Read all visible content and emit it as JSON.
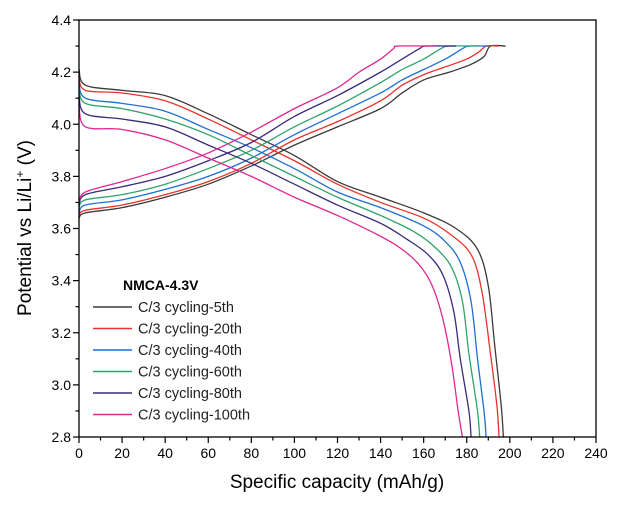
{
  "chart_data": {
    "type": "line",
    "title": "",
    "xlabel": "Specific capacity (mAh/g)",
    "ylabel": {
      "main": "Potential vs Li/Li",
      "sup": "+",
      "tail": " (V)"
    },
    "xlim": [
      0,
      240
    ],
    "ylim": [
      2.8,
      4.4
    ],
    "xticks": [
      0,
      20,
      40,
      60,
      80,
      100,
      120,
      140,
      160,
      180,
      200,
      220,
      240
    ],
    "yticks": [
      2.8,
      3.0,
      3.2,
      3.4,
      3.6,
      3.8,
      4.0,
      4.2,
      4.4
    ],
    "xtick_labels": [
      "0",
      "20",
      "40",
      "60",
      "80",
      "100",
      "120",
      "140",
      "160",
      "180",
      "200",
      "220",
      "240"
    ],
    "ytick_labels": [
      "2.8",
      "3.0",
      "3.2",
      "3.4",
      "3.6",
      "3.8",
      "4.0",
      "4.2",
      "4.4"
    ],
    "grid": false,
    "legend": {
      "title": "NMCA-4.3V",
      "placement": "bottom-left"
    },
    "series": [
      {
        "name": "C/3 cycling-5th",
        "color": "#3a3a3a",
        "discharge": [
          [
            0,
            4.21
          ],
          [
            3,
            4.15
          ],
          [
            20,
            4.13
          ],
          [
            40,
            4.11
          ],
          [
            60,
            4.04
          ],
          [
            80,
            3.96
          ],
          [
            100,
            3.88
          ],
          [
            120,
            3.78
          ],
          [
            140,
            3.72
          ],
          [
            160,
            3.66
          ],
          [
            175,
            3.6
          ],
          [
            185,
            3.52
          ],
          [
            190,
            3.38
          ],
          [
            193,
            3.15
          ],
          [
            196,
            2.92
          ],
          [
            197,
            2.8
          ]
        ],
        "charge": [
          [
            0,
            3.64
          ],
          [
            3,
            3.66
          ],
          [
            20,
            3.68
          ],
          [
            40,
            3.72
          ],
          [
            60,
            3.77
          ],
          [
            80,
            3.84
          ],
          [
            100,
            3.92
          ],
          [
            120,
            3.99
          ],
          [
            140,
            4.06
          ],
          [
            150,
            4.12
          ],
          [
            160,
            4.17
          ],
          [
            172,
            4.2
          ],
          [
            182,
            4.23
          ],
          [
            188,
            4.26
          ],
          [
            191,
            4.3
          ],
          [
            198,
            4.3
          ]
        ]
      },
      {
        "name": "C/3 cycling-20th",
        "color": "#e8332a",
        "discharge": [
          [
            0,
            4.18
          ],
          [
            3,
            4.13
          ],
          [
            20,
            4.12
          ],
          [
            40,
            4.09
          ],
          [
            60,
            4.02
          ],
          [
            80,
            3.94
          ],
          [
            100,
            3.86
          ],
          [
            120,
            3.77
          ],
          [
            140,
            3.7
          ],
          [
            160,
            3.64
          ],
          [
            172,
            3.58
          ],
          [
            182,
            3.5
          ],
          [
            187,
            3.36
          ],
          [
            191,
            3.12
          ],
          [
            194,
            2.92
          ],
          [
            195,
            2.8
          ]
        ],
        "charge": [
          [
            0,
            3.65
          ],
          [
            3,
            3.67
          ],
          [
            20,
            3.69
          ],
          [
            40,
            3.73
          ],
          [
            60,
            3.78
          ],
          [
            80,
            3.85
          ],
          [
            100,
            3.94
          ],
          [
            120,
            4.01
          ],
          [
            140,
            4.09
          ],
          [
            150,
            4.15
          ],
          [
            160,
            4.19
          ],
          [
            170,
            4.22
          ],
          [
            180,
            4.25
          ],
          [
            186,
            4.28
          ],
          [
            189,
            4.3
          ],
          [
            195,
            4.3
          ]
        ]
      },
      {
        "name": "C/3 cycling-40th",
        "color": "#1f6fd1",
        "discharge": [
          [
            0,
            4.16
          ],
          [
            3,
            4.1
          ],
          [
            20,
            4.08
          ],
          [
            40,
            4.05
          ],
          [
            60,
            3.98
          ],
          [
            80,
            3.91
          ],
          [
            100,
            3.83
          ],
          [
            120,
            3.74
          ],
          [
            140,
            3.68
          ],
          [
            160,
            3.61
          ],
          [
            170,
            3.55
          ],
          [
            177,
            3.47
          ],
          [
            182,
            3.32
          ],
          [
            185,
            3.1
          ],
          [
            188,
            2.9
          ],
          [
            189,
            2.8
          ]
        ],
        "charge": [
          [
            0,
            3.66
          ],
          [
            3,
            3.69
          ],
          [
            20,
            3.71
          ],
          [
            40,
            3.75
          ],
          [
            60,
            3.8
          ],
          [
            80,
            3.87
          ],
          [
            100,
            3.96
          ],
          [
            120,
            4.04
          ],
          [
            140,
            4.12
          ],
          [
            150,
            4.17
          ],
          [
            160,
            4.21
          ],
          [
            170,
            4.25
          ],
          [
            178,
            4.29
          ],
          [
            181,
            4.3
          ],
          [
            190,
            4.3
          ]
        ]
      },
      {
        "name": "C/3 cycling-60th",
        "color": "#2fa36b",
        "discharge": [
          [
            0,
            4.14
          ],
          [
            3,
            4.08
          ],
          [
            20,
            4.06
          ],
          [
            40,
            4.02
          ],
          [
            60,
            3.96
          ],
          [
            80,
            3.88
          ],
          [
            100,
            3.8
          ],
          [
            120,
            3.72
          ],
          [
            140,
            3.65
          ],
          [
            155,
            3.59
          ],
          [
            165,
            3.53
          ],
          [
            173,
            3.45
          ],
          [
            178,
            3.32
          ],
          [
            181,
            3.12
          ],
          [
            185,
            2.9
          ],
          [
            186,
            2.8
          ]
        ],
        "charge": [
          [
            0,
            3.68
          ],
          [
            3,
            3.71
          ],
          [
            20,
            3.73
          ],
          [
            40,
            3.77
          ],
          [
            60,
            3.83
          ],
          [
            80,
            3.9
          ],
          [
            100,
            3.99
          ],
          [
            120,
            4.07
          ],
          [
            140,
            4.16
          ],
          [
            150,
            4.21
          ],
          [
            160,
            4.25
          ],
          [
            168,
            4.29
          ],
          [
            172,
            4.3
          ],
          [
            185,
            4.3
          ]
        ]
      },
      {
        "name": "C/3 cycling-80th",
        "color": "#3a2a7a",
        "discharge": [
          [
            0,
            4.11
          ],
          [
            3,
            4.04
          ],
          [
            20,
            4.02
          ],
          [
            40,
            3.99
          ],
          [
            60,
            3.92
          ],
          [
            80,
            3.85
          ],
          [
            100,
            3.77
          ],
          [
            120,
            3.69
          ],
          [
            140,
            3.62
          ],
          [
            152,
            3.56
          ],
          [
            162,
            3.5
          ],
          [
            169,
            3.42
          ],
          [
            174,
            3.28
          ],
          [
            177,
            3.1
          ],
          [
            181,
            2.9
          ],
          [
            182,
            2.8
          ]
        ],
        "charge": [
          [
            0,
            3.69
          ],
          [
            3,
            3.73
          ],
          [
            20,
            3.76
          ],
          [
            40,
            3.8
          ],
          [
            60,
            3.86
          ],
          [
            80,
            3.93
          ],
          [
            100,
            4.03
          ],
          [
            120,
            4.11
          ],
          [
            140,
            4.2
          ],
          [
            150,
            4.25
          ],
          [
            158,
            4.29
          ],
          [
            161,
            4.3
          ],
          [
            175,
            4.3
          ]
        ]
      },
      {
        "name": "C/3 cycling-100th",
        "color": "#e0288f",
        "discharge": [
          [
            0,
            4.07
          ],
          [
            3,
            3.99
          ],
          [
            20,
            3.98
          ],
          [
            40,
            3.94
          ],
          [
            60,
            3.87
          ],
          [
            80,
            3.8
          ],
          [
            100,
            3.72
          ],
          [
            120,
            3.65
          ],
          [
            140,
            3.57
          ],
          [
            150,
            3.52
          ],
          [
            158,
            3.46
          ],
          [
            164,
            3.38
          ],
          [
            169,
            3.25
          ],
          [
            173,
            3.08
          ],
          [
            176,
            2.9
          ],
          [
            178,
            2.8
          ]
        ],
        "charge": [
          [
            0,
            3.7
          ],
          [
            3,
            3.74
          ],
          [
            20,
            3.78
          ],
          [
            40,
            3.83
          ],
          [
            60,
            3.89
          ],
          [
            80,
            3.97
          ],
          [
            100,
            4.06
          ],
          [
            120,
            4.14
          ],
          [
            130,
            4.2
          ],
          [
            140,
            4.25
          ],
          [
            146,
            4.29
          ],
          [
            148,
            4.3
          ],
          [
            165,
            4.3
          ]
        ]
      }
    ]
  }
}
